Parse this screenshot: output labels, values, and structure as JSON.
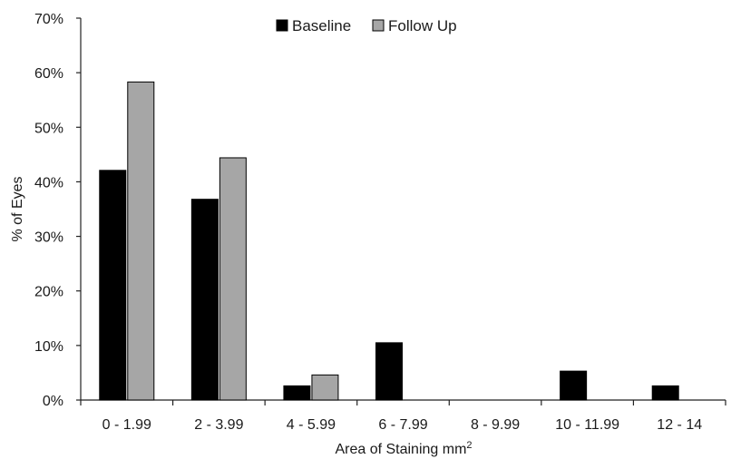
{
  "chart_data": {
    "type": "bar",
    "title": "",
    "xlabel": "Area of Staining mm",
    "xlabel_sup": "2",
    "ylabel": "% of Eyes",
    "ylim": [
      0,
      70
    ],
    "y_ticks": [
      0,
      10,
      20,
      30,
      40,
      50,
      60,
      70
    ],
    "y_tick_labels": [
      "0%",
      "10%",
      "20%",
      "30%",
      "40%",
      "50%",
      "60%",
      "70%"
    ],
    "categories": [
      "0 - 1.99",
      "2 - 3.99",
      "4 - 5.99",
      "6 - 7.99",
      "8 - 9.99",
      "10 - 11.99",
      "12 - 14"
    ],
    "series": [
      {
        "name": "Baseline",
        "color": "#000000",
        "values": [
          42.1,
          36.8,
          2.6,
          10.5,
          0,
          5.3,
          2.6
        ]
      },
      {
        "name": "Follow Up",
        "color": "#a6a6a6",
        "values": [
          58.3,
          44.4,
          4.6,
          0,
          0,
          0,
          0
        ]
      }
    ],
    "legend": "top-center",
    "grid": false
  }
}
